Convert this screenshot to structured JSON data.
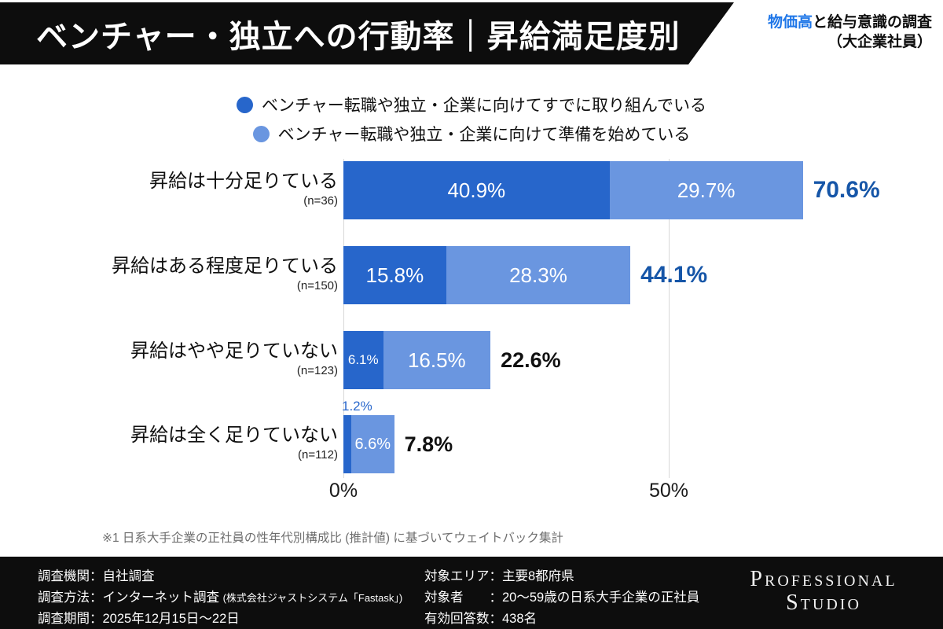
{
  "header": {
    "title": "ベンチャー・独立への行動率｜昇給満足度別",
    "survey_label": {
      "accent": "物価高",
      "rest": "と給与意識の調査",
      "line2": "（大企業社員）"
    }
  },
  "colors": {
    "series_dark": "#2766cb",
    "series_light": "#6a96e0",
    "total_emphasis": "#1656a8",
    "total_plain": "#111111",
    "float_label": "#2a68cc",
    "accent_blue": "#1e76e8",
    "banner_bg": "#0d0d0d",
    "footer_bg": "#0d0d0d",
    "gridline": "#d8d8d8"
  },
  "chart_data": {
    "type": "bar",
    "orientation": "horizontal",
    "unit": "%",
    "categories": [
      "昇給は十分足りている",
      "昇給はある程度足りている",
      "昇給はやや足りていない",
      "昇給は全く足りていない"
    ],
    "sample_sizes": [
      "(n=36)",
      "(n=150)",
      "(n=123)",
      "(n=112)"
    ],
    "series": [
      {
        "name": "ベンチャー転職や独立・企業に向けてすでに取り組んでいる",
        "color_key": "series_dark",
        "values": [
          40.9,
          15.8,
          6.1,
          1.2
        ]
      },
      {
        "name": "ベンチャー転職や独立・企業に向けて準備を始めている",
        "color_key": "series_light",
        "values": [
          29.7,
          28.3,
          16.5,
          6.6
        ]
      }
    ],
    "totals": [
      70.6,
      44.1,
      22.6,
      7.8
    ],
    "totals_emphasized": [
      true,
      true,
      false,
      false
    ],
    "xticks": [
      {
        "label": "0%",
        "value": 0
      },
      {
        "label": "50%",
        "value": 50
      }
    ],
    "xlim": [
      0,
      92
    ],
    "grid": true,
    "legend_position": "top-center"
  },
  "footnote": "※1 日系大手企業の正社員の性年代別構成比 (推計値) に基づいてウェイトバック集計",
  "footer": {
    "left": [
      {
        "text": "調査機関：自社調査",
        "note": ""
      },
      {
        "text": "調査方法：インターネット調査 ",
        "note": "(株式会社ジャストシステム「Fastask」)"
      },
      {
        "text": "調査期間：2025年12月15日〜22日",
        "note": ""
      }
    ],
    "right": [
      {
        "text": "対象エリア：主要8都府県"
      },
      {
        "text": "対象者　　：20〜59歳の日系大手企業の正社員"
      },
      {
        "text": "有効回答数：438名"
      }
    ],
    "logo": {
      "line1": "Professional",
      "line2": "Studio"
    }
  }
}
